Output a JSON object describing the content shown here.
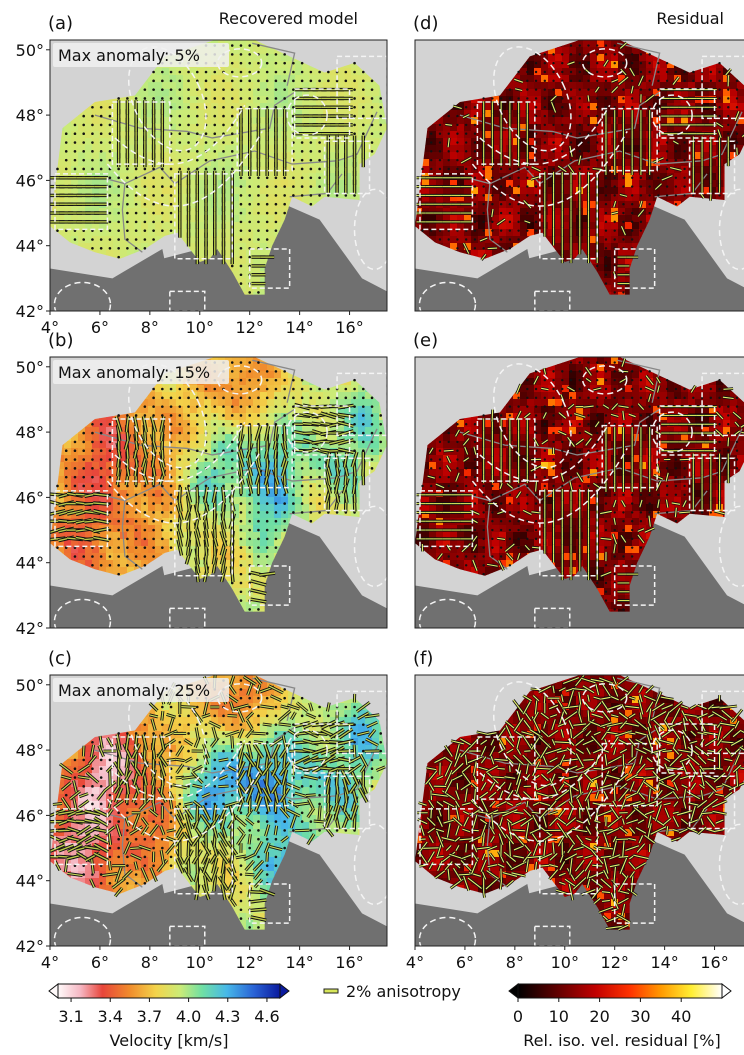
{
  "figure": {
    "left_column_title": "Recovered model",
    "right_column_title": "Residual",
    "legend_anisotropy": "2% anisotropy",
    "colorbar_velocity": {
      "label": "Velocity [km/s]",
      "ticks": [
        "3.1",
        "3.4",
        "3.7",
        "4.0",
        "4.3",
        "4.6"
      ],
      "range": [
        3.0,
        4.7
      ],
      "extend": "both"
    },
    "colorbar_residual": {
      "label": "Rel. iso. vel. residual [%]",
      "ticks": [
        "0",
        "10",
        "20",
        "30",
        "40"
      ],
      "range": [
        0,
        50
      ],
      "extend": "both"
    }
  },
  "chart_data": [
    {
      "type": "heatmap",
      "panel": "(a)",
      "annotation": "Max anomaly: 5%",
      "xlim": [
        4,
        17.5
      ],
      "ylim": [
        42,
        50.3
      ],
      "xticks": [
        "4°",
        "6°",
        "8°",
        "10°",
        "12°",
        "14°",
        "16°"
      ],
      "yticks": [
        "42°",
        "44°",
        "46°",
        "48°",
        "50°"
      ],
      "colormap": "velocity",
      "field": "mostly uniform ~3.7–3.8 km/s with slight green patches",
      "fast_axis_bars": "mostly N-S in checker blocks; E-W blocks in west and northeast"
    },
    {
      "type": "heatmap",
      "panel": "(b)",
      "annotation": "Max anomaly: 15%",
      "xlim": [
        4,
        17.5
      ],
      "ylim": [
        42,
        50.3
      ],
      "xticks": [],
      "yticks": [
        "42°",
        "44°",
        "46°",
        "48°",
        "50°"
      ],
      "colormap": "velocity",
      "field": "slow (red/orange ~3.3 km/s) west, faster cyan patches ~4.0 km/s central-east"
    },
    {
      "type": "heatmap",
      "panel": "(c)",
      "annotation": "Max anomaly: 25%",
      "xlim": [
        4,
        17.5
      ],
      "ylim": [
        42,
        50.3
      ],
      "xticks": [
        "4°",
        "6°",
        "8°",
        "10°",
        "12°",
        "14°",
        "16°"
      ],
      "yticks": [
        "42°",
        "44°",
        "46°",
        "48°",
        "50°"
      ],
      "colormap": "velocity",
      "field": "strong contrasts: white/pink ~3.0 km/s west, blue ~4.3 km/s central-east"
    },
    {
      "type": "heatmap",
      "panel": "(d)",
      "xlim": [
        4,
        17.5
      ],
      "ylim": [
        42,
        50.3
      ],
      "xticks": [],
      "yticks": [],
      "colormap": "residual",
      "field": "dark red background (5–15%) with scattered orange/yellow hot spots up to ~35%"
    },
    {
      "type": "heatmap",
      "panel": "(e)",
      "xlim": [
        4,
        17.5
      ],
      "ylim": [
        42,
        50.3
      ],
      "xticks": [],
      "yticks": [],
      "colormap": "residual",
      "field": "similar to (d), slightly fewer hot spots"
    },
    {
      "type": "heatmap",
      "panel": "(f)",
      "xlim": [
        4,
        17.5
      ],
      "ylim": [
        42,
        50.3
      ],
      "xticks": [
        "4°",
        "6°",
        "8°",
        "10°",
        "12°",
        "14°",
        "16°"
      ],
      "yticks": [],
      "colormap": "residual",
      "field": "dark red field with scattered red/orange spots; many yellow residual anisotropy bars"
    }
  ],
  "panels": [
    {
      "label": "(a)"
    },
    {
      "label": "(b)"
    },
    {
      "label": "(c)"
    },
    {
      "label": "(d)"
    },
    {
      "label": "(e)"
    },
    {
      "label": "(f)"
    }
  ]
}
